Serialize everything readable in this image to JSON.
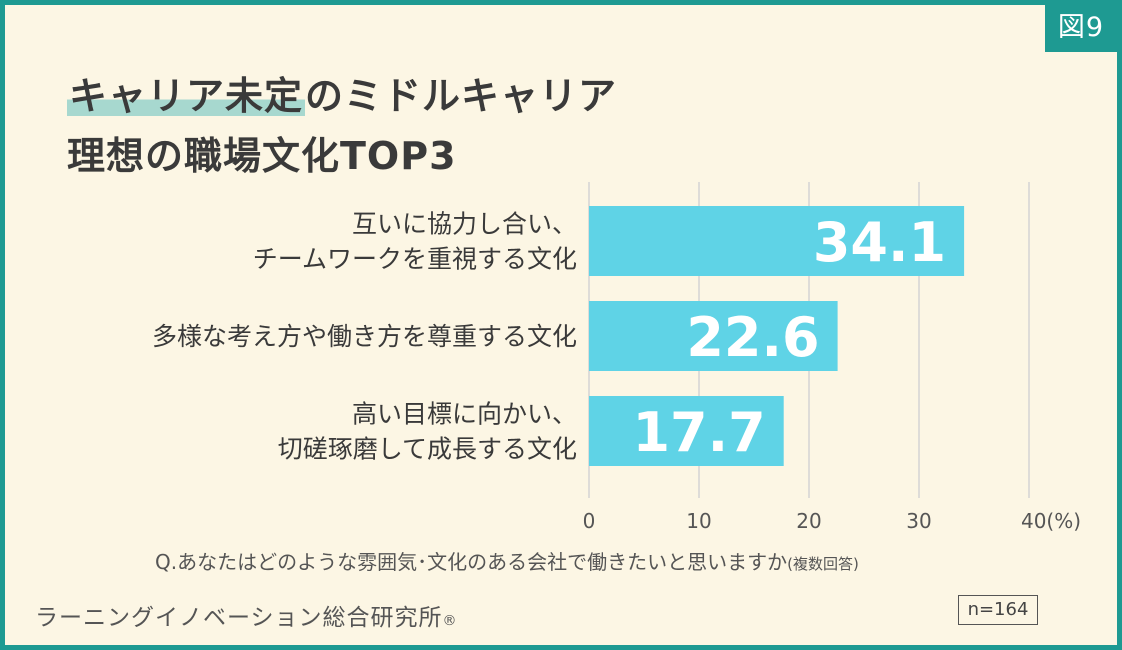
{
  "badge": "図9",
  "title": {
    "line1_highlight": "キャリア未定",
    "line1_rest": "のミドルキャリア",
    "line2": "理想の職場文化TOP3"
  },
  "chart_data": {
    "type": "bar",
    "orientation": "horizontal",
    "categories": [
      [
        "互いに協力し合い、",
        "チームワークを重視する文化"
      ],
      [
        "多様な考え方や働き方を尊重する文化"
      ],
      [
        "高い目標に向かい、",
        "切磋琢磨して成長する文化"
      ]
    ],
    "values": [
      34.1,
      22.6,
      17.7
    ],
    "data_labels": [
      "34.1",
      "22.6",
      "17.7"
    ],
    "xlim": [
      0,
      40
    ],
    "x_ticks": [
      "0",
      "10",
      "20",
      "30",
      "40(%)"
    ],
    "grid": true,
    "bar_color": "#5fd3e6",
    "title": "",
    "xlabel": "",
    "ylabel": ""
  },
  "question": {
    "main": "Q.あなたはどのような雰囲気･文化のある会社で働きたいと思いますか",
    "note": "(複数回答)"
  },
  "source": {
    "name": "ラーニングイノベーション総合研究所",
    "mark": "®"
  },
  "sample": "n=164",
  "colors": {
    "frame": "#1e9a92",
    "background": "#fcf6e4",
    "highlight": "#a7d8cf",
    "text": "#3a3a3a",
    "grid": "#d4d4d4"
  }
}
